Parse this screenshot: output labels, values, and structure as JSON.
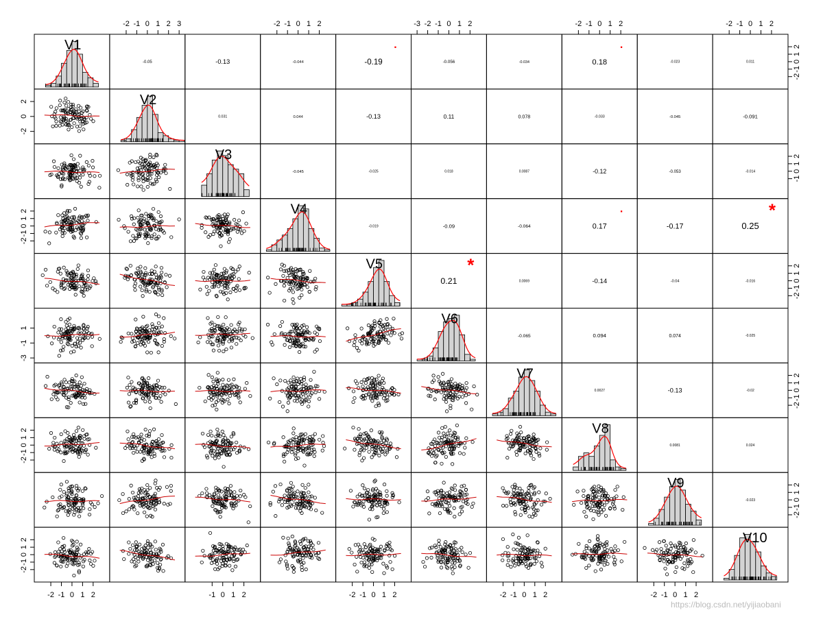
{
  "chart_data": {
    "type": "scatter",
    "variables": [
      "V1",
      "V2",
      "V3",
      "V4",
      "V5",
      "V6",
      "V7",
      "V8",
      "V9",
      "V10"
    ],
    "correlations": [
      {
        "row": 1,
        "col": 2,
        "value": "-0.05"
      },
      {
        "row": 1,
        "col": 3,
        "value": "-0.13"
      },
      {
        "row": 1,
        "col": 4,
        "value": "-0.044"
      },
      {
        "row": 1,
        "col": 5,
        "value": "-0.19",
        "sig": "."
      },
      {
        "row": 1,
        "col": 6,
        "value": "-0.056"
      },
      {
        "row": 1,
        "col": 7,
        "value": "-0.034"
      },
      {
        "row": 1,
        "col": 8,
        "value": "0.18",
        "sig": "."
      },
      {
        "row": 1,
        "col": 9,
        "value": "-0.023"
      },
      {
        "row": 1,
        "col": 10,
        "value": "0.011"
      },
      {
        "row": 2,
        "col": 3,
        "value": "0.031"
      },
      {
        "row": 2,
        "col": 4,
        "value": "0.044"
      },
      {
        "row": 2,
        "col": 5,
        "value": "-0.13"
      },
      {
        "row": 2,
        "col": 6,
        "value": "0.11"
      },
      {
        "row": 2,
        "col": 7,
        "value": "0.078"
      },
      {
        "row": 2,
        "col": 8,
        "value": "-0.033"
      },
      {
        "row": 2,
        "col": 9,
        "value": "-0.045"
      },
      {
        "row": 2,
        "col": 10,
        "value": "-0.091"
      },
      {
        "row": 3,
        "col": 4,
        "value": "-0.045"
      },
      {
        "row": 3,
        "col": 5,
        "value": "-0.025"
      },
      {
        "row": 3,
        "col": 6,
        "value": "0.018"
      },
      {
        "row": 3,
        "col": 7,
        "value": "0.0087"
      },
      {
        "row": 3,
        "col": 8,
        "value": "-0.12"
      },
      {
        "row": 3,
        "col": 9,
        "value": "-0.053"
      },
      {
        "row": 3,
        "col": 10,
        "value": "-0.014"
      },
      {
        "row": 4,
        "col": 5,
        "value": "-0.019"
      },
      {
        "row": 4,
        "col": 6,
        "value": "-0.09"
      },
      {
        "row": 4,
        "col": 7,
        "value": "-0.064"
      },
      {
        "row": 4,
        "col": 8,
        "value": "0.17",
        "sig": "."
      },
      {
        "row": 4,
        "col": 9,
        "value": "-0.17"
      },
      {
        "row": 4,
        "col": 10,
        "value": "0.25",
        "sig": "*"
      },
      {
        "row": 5,
        "col": 6,
        "value": "0.21",
        "sig": "*"
      },
      {
        "row": 5,
        "col": 7,
        "value": "0.0069"
      },
      {
        "row": 5,
        "col": 8,
        "value": "-0.14"
      },
      {
        "row": 5,
        "col": 9,
        "value": "-0.04"
      },
      {
        "row": 5,
        "col": 10,
        "value": "-0.016"
      },
      {
        "row": 6,
        "col": 7,
        "value": "-0.065"
      },
      {
        "row": 6,
        "col": 8,
        "value": "0.094"
      },
      {
        "row": 6,
        "col": 9,
        "value": "0.074"
      },
      {
        "row": 6,
        "col": 10,
        "value": "-0.025"
      },
      {
        "row": 7,
        "col": 8,
        "value": "0.0027"
      },
      {
        "row": 7,
        "col": 9,
        "value": "-0.13"
      },
      {
        "row": 7,
        "col": 10,
        "value": "-0.02"
      },
      {
        "row": 8,
        "col": 9,
        "value": "0.0081"
      },
      {
        "row": 8,
        "col": 10,
        "value": "0.024"
      },
      {
        "row": 9,
        "col": 10,
        "value": "-0.023"
      }
    ],
    "histograms": [
      {
        "var": "V1",
        "breaks": [
          -2.5,
          -2,
          -1.5,
          -1,
          -0.5,
          0,
          0.5,
          1,
          1.5,
          2,
          2.5
        ],
        "counts": [
          1,
          2,
          6,
          13,
          20,
          25,
          18,
          8,
          5,
          2
        ]
      },
      {
        "var": "V2",
        "breaks": [
          -2.5,
          -2,
          -1.5,
          -1,
          -0.5,
          0,
          0.5,
          1,
          1.5,
          2,
          2.5,
          3,
          3.5
        ],
        "counts": [
          1,
          2,
          8,
          16,
          24,
          30,
          18,
          6,
          4,
          2,
          1,
          1
        ]
      },
      {
        "var": "V3",
        "breaks": [
          -2,
          -1.5,
          -1,
          -0.5,
          0,
          0.5,
          1,
          1.5,
          2,
          2.5
        ],
        "counts": [
          5,
          10,
          16,
          20,
          18,
          14,
          12,
          10,
          3
        ]
      },
      {
        "var": "V4",
        "breaks": [
          -3,
          -2.5,
          -2,
          -1.5,
          -1,
          -0.5,
          0,
          0.5,
          1,
          1.5,
          2,
          2.5,
          3
        ],
        "counts": [
          1,
          4,
          7,
          10,
          14,
          20,
          28,
          26,
          14,
          8,
          2,
          1
        ]
      },
      {
        "var": "V5",
        "breaks": [
          -3,
          -2.5,
          -2,
          -1.5,
          -1,
          -0.5,
          0,
          0.5,
          1,
          1.5,
          2,
          2.5
        ],
        "counts": [
          1,
          1,
          2,
          4,
          8,
          14,
          22,
          26,
          14,
          6,
          2
        ]
      },
      {
        "var": "V6",
        "breaks": [
          -3,
          -2.5,
          -2,
          -1.5,
          -1,
          -0.5,
          0,
          0.5,
          1,
          1.5,
          2,
          2.5
        ],
        "counts": [
          1,
          1,
          3,
          8,
          18,
          24,
          26,
          28,
          16,
          4,
          1
        ]
      },
      {
        "var": "V7",
        "breaks": [
          -3,
          -2.5,
          -2,
          -1.5,
          -1,
          -0.5,
          0,
          0.5,
          1,
          1.5,
          2,
          2.5,
          3
        ],
        "counts": [
          1,
          2,
          4,
          10,
          14,
          22,
          26,
          20,
          14,
          6,
          2,
          1
        ]
      },
      {
        "var": "V8",
        "breaks": [
          -2.5,
          -2,
          -1.5,
          -1,
          -0.5,
          0,
          0.5,
          1,
          1.5,
          2,
          2.5
        ],
        "counts": [
          2,
          8,
          10,
          8,
          14,
          20,
          26,
          6,
          2,
          1
        ]
      },
      {
        "var": "V9",
        "breaks": [
          -2.5,
          -2,
          -1.5,
          -1,
          -0.5,
          0,
          0.5,
          1,
          1.5,
          2,
          2.5
        ],
        "counts": [
          1,
          4,
          9,
          16,
          22,
          26,
          20,
          12,
          8,
          3
        ]
      },
      {
        "var": "V10",
        "breaks": [
          -2.5,
          -2,
          -1.5,
          -1,
          -0.5,
          0,
          0.5,
          1,
          1.5,
          2,
          2.5
        ],
        "counts": [
          1,
          6,
          14,
          24,
          26,
          22,
          16,
          8,
          4,
          2
        ]
      }
    ],
    "axes": {
      "top": [
        {
          "col": 2,
          "ticks": [
            "-2",
            "-1",
            "0",
            "1",
            "2",
            "3"
          ]
        },
        {
          "col": 4,
          "ticks": [
            "-2",
            "-1",
            "0",
            "1",
            "2"
          ]
        },
        {
          "col": 6,
          "ticks": [
            "-3",
            "-2",
            "-1",
            "0",
            "1",
            "2"
          ]
        },
        {
          "col": 8,
          "ticks": [
            "-2",
            "-1",
            "0",
            "1",
            "2"
          ]
        },
        {
          "col": 10,
          "ticks": [
            "-2",
            "-1",
            "0",
            "1",
            "2"
          ]
        }
      ],
      "bottom": [
        {
          "col": 1,
          "ticks": [
            "-2",
            "-1",
            "0",
            "1",
            "2"
          ]
        },
        {
          "col": 3,
          "ticks": [
            "-1",
            "0",
            "1",
            "2"
          ]
        },
        {
          "col": 5,
          "ticks": [
            "-2",
            "-1",
            "0",
            "1",
            "2"
          ]
        },
        {
          "col": 7,
          "ticks": [
            "-2",
            "-1",
            "0",
            "1",
            "2"
          ]
        },
        {
          "col": 9,
          "ticks": [
            "-2",
            "-1",
            "0",
            "1",
            "2"
          ]
        }
      ],
      "left": [
        {
          "row": 2,
          "ticks": [
            "-2",
            "0",
            "2"
          ]
        },
        {
          "row": 4,
          "ticks": [
            "-2",
            "-1",
            "0",
            "1",
            "2"
          ]
        },
        {
          "row": 6,
          "ticks": [
            "-3",
            "-1",
            "1"
          ]
        },
        {
          "row": 8,
          "ticks": [
            "-2",
            "-1",
            "0",
            "1",
            "2"
          ]
        },
        {
          "row": 10,
          "ticks": [
            "-2",
            "-1",
            "0",
            "1",
            "2"
          ]
        }
      ],
      "right": [
        {
          "row": 1,
          "ticks": [
            "-2",
            "-1",
            "0",
            "1",
            "2"
          ]
        },
        {
          "row": 3,
          "ticks": [
            "-1",
            "0",
            "1",
            "2"
          ]
        },
        {
          "row": 5,
          "ticks": [
            "-2",
            "-1",
            "0",
            "1",
            "2"
          ]
        },
        {
          "row": 7,
          "ticks": [
            "-2",
            "-1",
            "0",
            "1",
            "2"
          ]
        },
        {
          "row": 9,
          "ticks": [
            "-2",
            "-1",
            "0",
            "1",
            "2"
          ]
        }
      ]
    },
    "colors": {
      "points": "#000000",
      "smooth": "#cc0000",
      "bars": "#d3d3d3",
      "density": "#ff0000",
      "significance": "#ff0000"
    }
  },
  "watermark": "https://blog.csdn.net/yijiaobani"
}
